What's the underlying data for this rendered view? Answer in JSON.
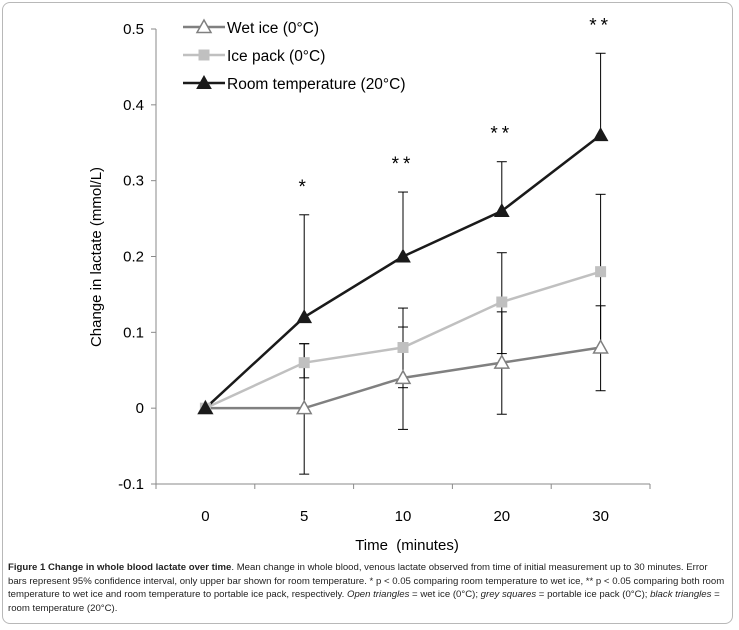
{
  "chart_data": {
    "type": "line",
    "categories": [
      "0",
      "5",
      "10",
      "20",
      "30"
    ],
    "xlabel": "Time  (minutes)",
    "ylabel": "Change in lactate (mmol/L)",
    "ylim": [
      -0.1,
      0.5
    ],
    "yticks": [
      "-0.1",
      "0",
      "0.1",
      "0.2",
      "0.3",
      "0.4",
      "0.5"
    ],
    "grid": false,
    "legend_position": "top-left",
    "series": [
      {
        "name": "Wet ice (0°C)",
        "marker": "open-triangle",
        "color": "#808080",
        "values": [
          0,
          0,
          0.04,
          0.06,
          0.08
        ],
        "error_upper": [
          0,
          0.085,
          0.107,
          0.127,
          0.135
        ],
        "error_lower": [
          0,
          -0.087,
          -0.028,
          -0.008,
          0.023
        ],
        "error_bars": "both"
      },
      {
        "name": "Ice pack (0°C)",
        "marker": "square",
        "color": "#c0c0c0",
        "values": [
          0,
          0.06,
          0.08,
          0.14,
          0.18
        ],
        "error_upper": [
          0,
          0.085,
          0.132,
          0.205,
          0.282
        ],
        "error_lower": [
          0,
          0.04,
          0.027,
          0.072,
          0.078
        ],
        "error_bars": "both"
      },
      {
        "name": "Room temperature (20°C)",
        "marker": "filled-triangle",
        "color": "#1a1a1a",
        "values": [
          0,
          0.12,
          0.2,
          0.26,
          0.36
        ],
        "error_upper": [
          0,
          0.255,
          0.285,
          0.325,
          0.468
        ],
        "error_bars": "upper"
      }
    ],
    "annotations": [
      {
        "category": "5",
        "text": "*"
      },
      {
        "category": "10",
        "text": "**"
      },
      {
        "category": "20",
        "text": "**"
      },
      {
        "category": "30",
        "text": "**"
      }
    ]
  },
  "caption": {
    "title": "Figure 1 Change in whole blood lactate over time",
    "body": ". Mean change in whole blood, venous lactate observed from time of initial measurement up to 30 minutes. Error bars represent 95% confidence interval, only upper bar shown for room temperature. * p < 0.05 comparing room temperature to wet ice, ** p < 0.05 comparing both room temperature to wet ice and room temperature to portable ice pack, respectively.",
    "key_open": "Open triangles",
    "key_open_desc": " = wet ice (0°C); ",
    "key_grey": "grey squares",
    "key_grey_desc": " = portable ice pack (0°C); ",
    "key_black": "black triangles",
    "key_black_desc": " = room temperature (20°C)."
  }
}
